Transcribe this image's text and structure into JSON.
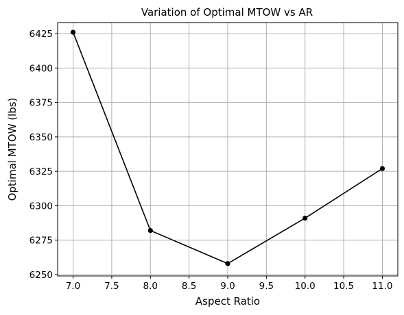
{
  "chart_data": {
    "type": "line",
    "title": "Variation of Optimal MTOW vs AR",
    "xlabel": "Aspect Ratio",
    "ylabel": "Optimal MTOW (lbs)",
    "x": [
      7.0,
      8.0,
      9.0,
      10.0,
      11.0
    ],
    "series": [
      {
        "values": [
          6426,
          6282,
          6258,
          6291,
          6327
        ]
      }
    ],
    "xlim": [
      6.8,
      11.2
    ],
    "ylim": [
      6249,
      6433
    ],
    "x_ticks": [
      "7.0",
      "7.5",
      "8.0",
      "8.5",
      "9.0",
      "9.5",
      "10.0",
      "10.5",
      "11.0"
    ],
    "y_ticks": [
      "6250",
      "6275",
      "6300",
      "6325",
      "6350",
      "6375",
      "6400",
      "6425"
    ],
    "grid": true,
    "line_color": "#000000",
    "marker": "filled-circle"
  }
}
